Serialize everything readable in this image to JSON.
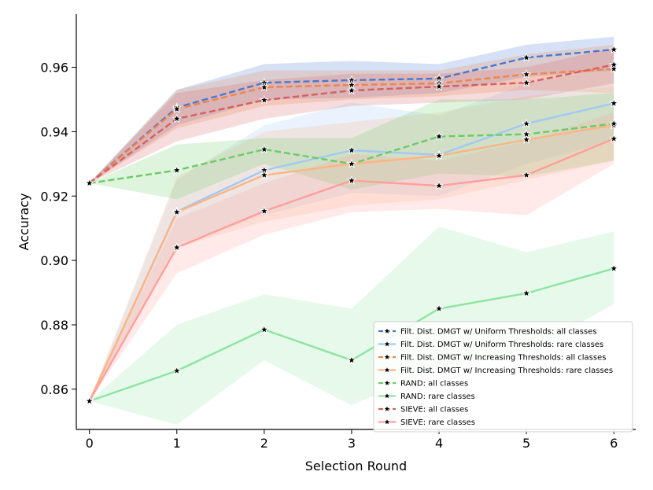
{
  "chart_data": {
    "type": "line",
    "title": "",
    "xlabel": "Selection Round",
    "ylabel": "Accuracy",
    "xlim": [
      -0.15,
      6.25
    ],
    "ylim": [
      0.8475,
      0.9765
    ],
    "x": [
      0,
      1,
      2,
      3,
      4,
      5,
      6
    ],
    "xticks": [
      0,
      1,
      2,
      3,
      4,
      5,
      6
    ],
    "xtick_labels": [
      "0",
      "1",
      "2",
      "3",
      "4",
      "5",
      "6"
    ],
    "yticks": [
      0.86,
      0.88,
      0.9,
      0.92,
      0.94,
      0.96
    ],
    "ytick_labels": [
      "0.86",
      "0.88",
      "0.90",
      "0.92",
      "0.94",
      "0.96"
    ],
    "grid": false,
    "legend_position": "lower-right",
    "series": [
      {
        "name": "Filt. Dist. DMGT w/ Uniform Thresholds: all classes",
        "color": "#4878d0",
        "dashed": true,
        "values": [
          0.924,
          0.9475,
          0.9552,
          0.956,
          0.9565,
          0.963,
          0.9655
        ],
        "lower": [
          0.924,
          0.942,
          0.95,
          0.9505,
          0.952,
          0.957,
          0.959
        ],
        "upper": [
          0.924,
          0.953,
          0.961,
          0.962,
          0.961,
          0.967,
          0.9695
        ]
      },
      {
        "name": "Filt. Dist. DMGT w/ Uniform Thresholds: rare classes",
        "color": "#a1c9f4",
        "dashed": false,
        "values": [
          0.8563,
          0.9152,
          0.928,
          0.9342,
          0.9328,
          0.9425,
          0.9488
        ],
        "lower": [
          0.8563,
          0.905,
          0.914,
          0.921,
          0.92,
          0.93,
          0.937
        ],
        "upper": [
          0.8563,
          0.925,
          0.942,
          0.949,
          0.945,
          0.955,
          0.96
        ]
      },
      {
        "name": "Filt. Dist. DMGT w/ Increasing Thresholds: all classes",
        "color": "#ee854a",
        "dashed": true,
        "values": [
          0.924,
          0.947,
          0.9538,
          0.9545,
          0.955,
          0.9578,
          0.9595
        ],
        "lower": [
          0.924,
          0.941,
          0.948,
          0.95,
          0.951,
          0.953,
          0.952
        ],
        "upper": [
          0.924,
          0.953,
          0.959,
          0.959,
          0.959,
          0.964,
          0.967
        ]
      },
      {
        "name": "Filt. Dist. DMGT w/ Increasing Thresholds: rare classes",
        "color": "#ffb482",
        "dashed": false,
        "values": [
          0.8563,
          0.915,
          0.9265,
          0.93,
          0.9325,
          0.9375,
          0.942
        ],
        "lower": [
          0.8563,
          0.904,
          0.912,
          0.917,
          0.919,
          0.925,
          0.931
        ],
        "upper": [
          0.8563,
          0.926,
          0.94,
          0.943,
          0.946,
          0.951,
          0.954
        ]
      },
      {
        "name": "RAND: all classes",
        "color": "#6acc64",
        "dashed": true,
        "values": [
          0.924,
          0.928,
          0.9345,
          0.93,
          0.9385,
          0.9392,
          0.9425
        ],
        "lower": [
          0.924,
          0.919,
          0.93,
          0.922,
          0.927,
          0.926,
          0.931
        ],
        "upper": [
          0.924,
          0.936,
          0.938,
          0.938,
          0.95,
          0.95,
          0.952
        ]
      },
      {
        "name": "RAND: rare classes",
        "color": "#8de5a1",
        "dashed": false,
        "values": [
          0.8563,
          0.8657,
          0.8785,
          0.869,
          0.885,
          0.8898,
          0.8975
        ],
        "lower": [
          0.8563,
          0.849,
          0.869,
          0.855,
          0.867,
          0.871,
          0.8865
        ],
        "upper": [
          0.8563,
          0.88,
          0.8895,
          0.885,
          0.9105,
          0.9025,
          0.909
        ]
      },
      {
        "name": "SIEVE: all classes",
        "color": "#d65f5f",
        "dashed": true,
        "values": [
          0.924,
          0.944,
          0.9498,
          0.9528,
          0.954,
          0.9552,
          0.9608
        ],
        "lower": [
          0.924,
          0.937,
          0.944,
          0.948,
          0.949,
          0.95,
          0.955
        ],
        "upper": [
          0.924,
          0.952,
          0.956,
          0.958,
          0.958,
          0.96,
          0.966
        ]
      },
      {
        "name": "SIEVE: rare classes",
        "color": "#ff9f9b",
        "dashed": false,
        "values": [
          0.8563,
          0.904,
          0.9153,
          0.9248,
          0.9232,
          0.9265,
          0.9378
        ],
        "lower": [
          0.8563,
          0.896,
          0.908,
          0.915,
          0.916,
          0.914,
          0.93
        ],
        "upper": [
          0.8563,
          0.913,
          0.924,
          0.933,
          0.931,
          0.937,
          0.946
        ]
      }
    ]
  }
}
